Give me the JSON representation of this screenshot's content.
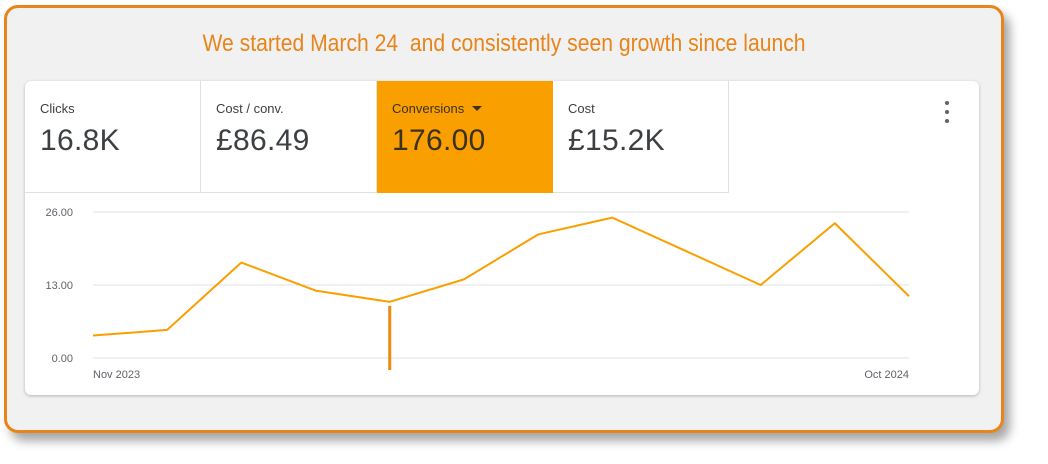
{
  "headline": "We started March 24  and consistently seen growth since launch",
  "metrics": [
    {
      "label": "Clicks",
      "value": "16.8K",
      "selected": false
    },
    {
      "label": "Cost / conv.",
      "value": "£86.49",
      "selected": false
    },
    {
      "label": "Conversions",
      "value": "176.00",
      "selected": true
    },
    {
      "label": "Cost",
      "value": "£15.2K",
      "selected": false
    }
  ],
  "menu_icon": "more-vert-icon",
  "colors": {
    "accent": "#e8851a",
    "series": "#f9a000",
    "marker": "#ee8a14",
    "frame_bg": "#f1f1f1"
  },
  "chart_data": {
    "type": "line",
    "title": "",
    "xlabel": "",
    "ylabel": "",
    "ylim": [
      0,
      26
    ],
    "y_ticks": [
      "0.00",
      "13.00",
      "26.00"
    ],
    "x_tick_labels": [
      "Nov 2023",
      "Oct 2024"
    ],
    "x": [
      "Nov 2023",
      "Dec 2023",
      "Jan 2024",
      "Feb 2024",
      "Mar 2024",
      "Apr 2024",
      "May 2024",
      "Jun 2024",
      "Jul 2024",
      "Aug 2024",
      "Sep 2024",
      "Oct 2024"
    ],
    "series": [
      {
        "name": "",
        "values": [
          4,
          5,
          17,
          12,
          10,
          14,
          22,
          25,
          19,
          13,
          24,
          11
        ]
      }
    ],
    "marker_at": "Mar 2024",
    "grid": true,
    "legend": "none"
  }
}
